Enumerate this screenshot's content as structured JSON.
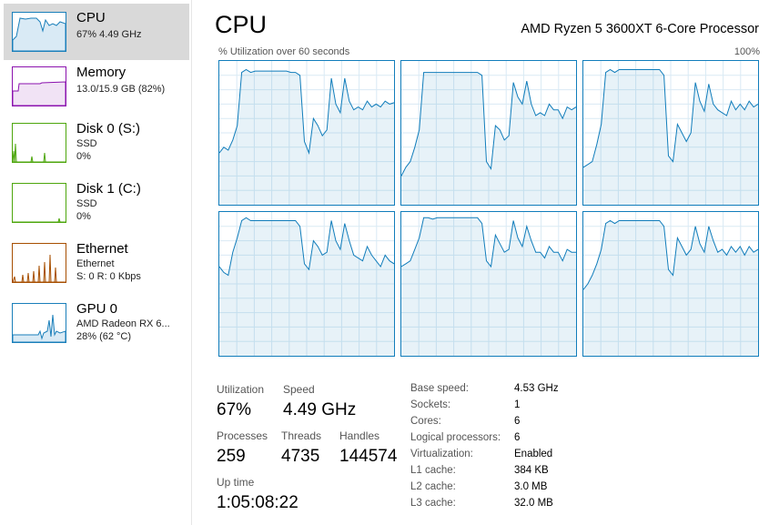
{
  "sidebar": {
    "items": [
      {
        "name": "CPU",
        "sub1": "67% 4.49 GHz",
        "color": "#1a7fba"
      },
      {
        "name": "Memory",
        "sub1": "13.0/15.9 GB (82%)",
        "color": "#8b12ae"
      },
      {
        "name": "Disk 0 (S:)",
        "sub1": "SSD",
        "sub2": "0%",
        "color": "#4da60c"
      },
      {
        "name": "Disk 1 (C:)",
        "sub1": "SSD",
        "sub2": "0%",
        "color": "#4da60c"
      },
      {
        "name": "Ethernet",
        "sub1": "Ethernet",
        "sub2": "S: 0 R: 0 Kbps",
        "color": "#a74f01"
      },
      {
        "name": "GPU 0",
        "sub1": "AMD Radeon RX 6...",
        "sub2": "28% (62 °C)",
        "color": "#1a7fba"
      }
    ]
  },
  "header": {
    "title": "CPU",
    "processor": "AMD Ryzen 5 3600XT 6-Core Processor",
    "graph_label": "% Utilization over 60 seconds",
    "graph_max": "100%"
  },
  "chart_data": {
    "type": "area",
    "x_unit": "seconds",
    "ylim": [
      0,
      100
    ],
    "series": [
      {
        "values": [
          36,
          40,
          38,
          45,
          55,
          92,
          94,
          92,
          93,
          93,
          93,
          93,
          93,
          93,
          93,
          93,
          92,
          92,
          90,
          44,
          36,
          60,
          55,
          48,
          52,
          88,
          70,
          64,
          88,
          72,
          66,
          68,
          66,
          72,
          68,
          70,
          68,
          72,
          70,
          71
        ]
      },
      {
        "values": [
          20,
          26,
          30,
          40,
          52,
          92,
          92,
          92,
          92,
          92,
          92,
          92,
          92,
          92,
          92,
          92,
          92,
          92,
          90,
          30,
          25,
          55,
          52,
          45,
          48,
          85,
          75,
          70,
          86,
          70,
          62,
          64,
          62,
          70,
          66,
          66,
          60,
          68,
          66,
          68
        ]
      },
      {
        "values": [
          26,
          28,
          30,
          42,
          56,
          92,
          94,
          92,
          94,
          94,
          94,
          94,
          94,
          94,
          94,
          94,
          94,
          94,
          90,
          34,
          30,
          56,
          50,
          44,
          50,
          85,
          72,
          65,
          84,
          70,
          66,
          64,
          62,
          72,
          66,
          70,
          66,
          72,
          68,
          70
        ]
      },
      {
        "values": [
          62,
          58,
          56,
          72,
          82,
          94,
          96,
          94,
          94,
          94,
          94,
          94,
          94,
          94,
          94,
          94,
          94,
          94,
          90,
          64,
          60,
          80,
          76,
          70,
          72,
          94,
          80,
          74,
          92,
          80,
          70,
          68,
          66,
          76,
          70,
          66,
          62,
          70,
          66,
          64
        ]
      },
      {
        "values": [
          62,
          64,
          66,
          74,
          82,
          96,
          96,
          95,
          96,
          96,
          96,
          96,
          96,
          96,
          96,
          96,
          96,
          96,
          92,
          66,
          62,
          84,
          78,
          72,
          74,
          94,
          82,
          76,
          90,
          80,
          72,
          72,
          68,
          76,
          72,
          72,
          66,
          74,
          72,
          72
        ]
      },
      {
        "values": [
          46,
          50,
          56,
          64,
          74,
          92,
          94,
          92,
          94,
          94,
          94,
          94,
          94,
          94,
          94,
          94,
          94,
          94,
          90,
          60,
          56,
          82,
          76,
          70,
          74,
          90,
          78,
          72,
          90,
          80,
          72,
          74,
          70,
          76,
          72,
          76,
          70,
          76,
          72,
          74
        ]
      }
    ]
  },
  "stats": {
    "utilization_label": "Utilization",
    "utilization": "67%",
    "speed_label": "Speed",
    "speed": "4.49 GHz",
    "processes_label": "Processes",
    "processes": "259",
    "threads_label": "Threads",
    "threads": "4735",
    "handles_label": "Handles",
    "handles": "144574",
    "uptime_label": "Up time",
    "uptime": "1:05:08:22"
  },
  "info": {
    "base_speed_key": "Base speed:",
    "base_speed": "4.53 GHz",
    "sockets_key": "Sockets:",
    "sockets": "1",
    "cores_key": "Cores:",
    "cores": "6",
    "logical_key": "Logical processors:",
    "logical": "6",
    "virtualization_key": "Virtualization:",
    "virtualization": "Enabled",
    "l1_key": "L1 cache:",
    "l1": "384 KB",
    "l2_key": "L2 cache:",
    "l2": "3.0 MB",
    "l3_key": "L3 cache:",
    "l3": "32.0 MB"
  }
}
